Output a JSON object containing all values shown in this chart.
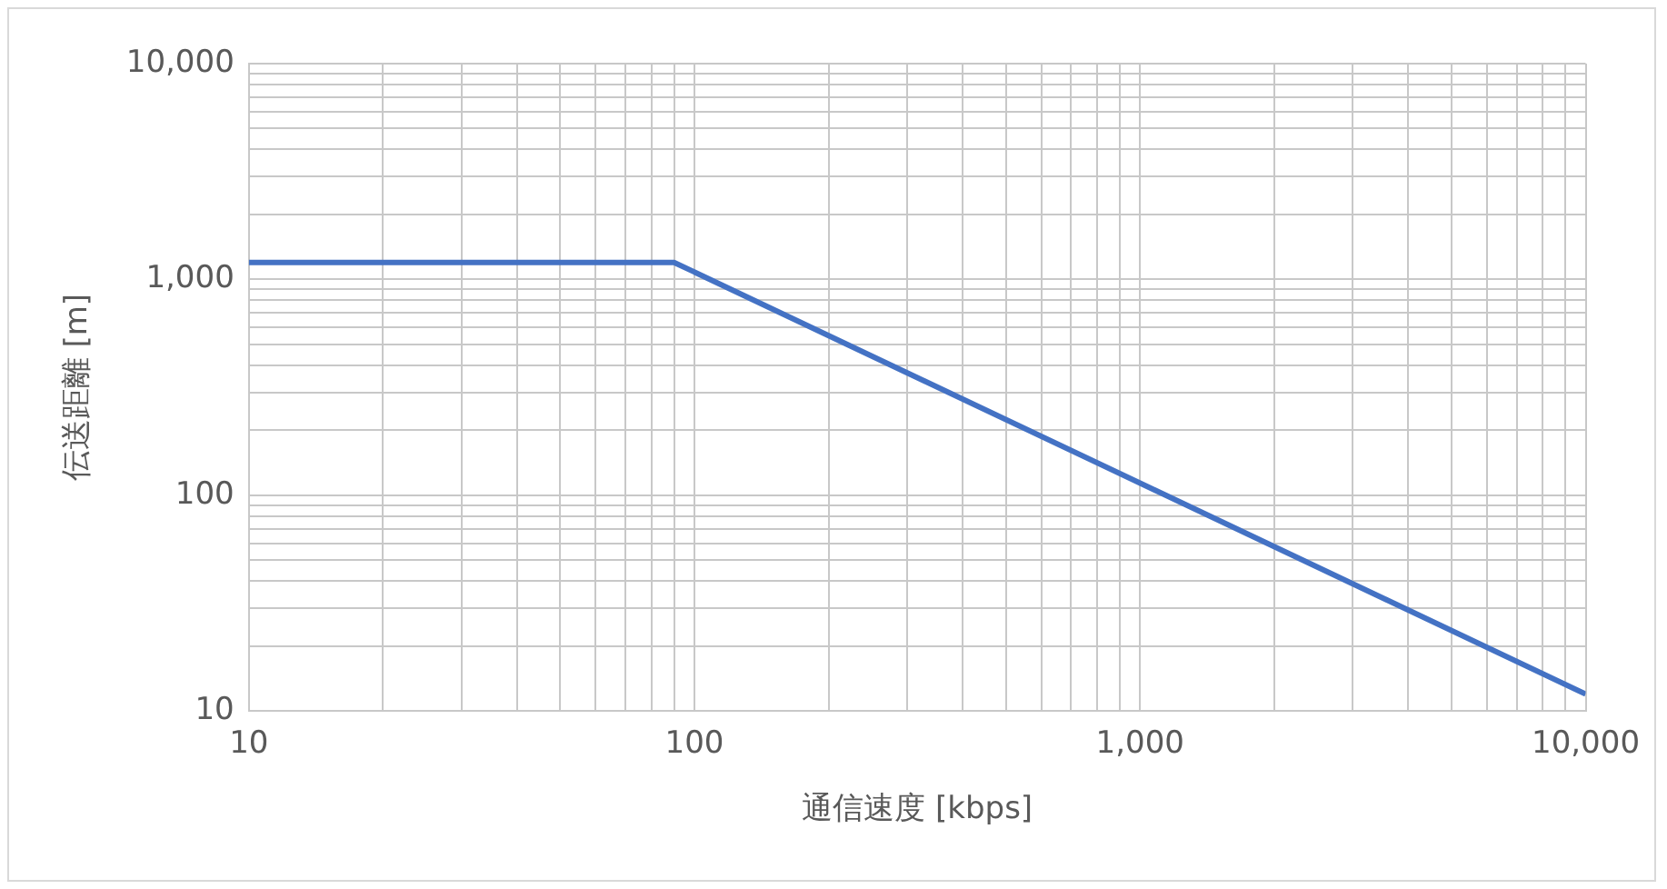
{
  "chart_data": {
    "type": "line",
    "xlabel": "通信速度 [kbps]",
    "ylabel": "伝送距離 [m]",
    "log": "xy",
    "grid": true,
    "legend": false,
    "marker": "none",
    "line_style": "solid",
    "x": [
      10,
      90,
      10000
    ],
    "series": [
      {
        "color": "#4472c4",
        "values": [
          1200,
          1200,
          12
        ]
      }
    ],
    "xlim": [
      10,
      10000
    ],
    "xticks": [
      {
        "value": 10,
        "label": "10"
      },
      {
        "value": 20,
        "label": null
      },
      {
        "value": 30,
        "label": null
      },
      {
        "value": 40,
        "label": null
      },
      {
        "value": 50,
        "label": null
      },
      {
        "value": 60,
        "label": null
      },
      {
        "value": 70,
        "label": null
      },
      {
        "value": 80,
        "label": null
      },
      {
        "value": 90,
        "label": null
      },
      {
        "value": 100,
        "label": "100"
      },
      {
        "value": 200,
        "label": null
      },
      {
        "value": 300,
        "label": null
      },
      {
        "value": 400,
        "label": null
      },
      {
        "value": 500,
        "label": null
      },
      {
        "value": 600,
        "label": null
      },
      {
        "value": 700,
        "label": null
      },
      {
        "value": 800,
        "label": null
      },
      {
        "value": 900,
        "label": null
      },
      {
        "value": 1000,
        "label": "1,000"
      },
      {
        "value": 2000,
        "label": null
      },
      {
        "value": 3000,
        "label": null
      },
      {
        "value": 4000,
        "label": null
      },
      {
        "value": 5000,
        "label": null
      },
      {
        "value": 6000,
        "label": null
      },
      {
        "value": 7000,
        "label": null
      },
      {
        "value": 8000,
        "label": null
      },
      {
        "value": 9000,
        "label": null
      },
      {
        "value": 10000,
        "label": "10,000"
      }
    ],
    "ylim": [
      10,
      10000
    ],
    "yticks": [
      {
        "value": 10,
        "label": "10"
      },
      {
        "value": 20,
        "label": null
      },
      {
        "value": 30,
        "label": null
      },
      {
        "value": 40,
        "label": null
      },
      {
        "value": 50,
        "label": null
      },
      {
        "value": 60,
        "label": null
      },
      {
        "value": 70,
        "label": null
      },
      {
        "value": 80,
        "label": null
      },
      {
        "value": 90,
        "label": null
      },
      {
        "value": 100,
        "label": "100"
      },
      {
        "value": 200,
        "label": null
      },
      {
        "value": 300,
        "label": null
      },
      {
        "value": 400,
        "label": null
      },
      {
        "value": 500,
        "label": null
      },
      {
        "value": 600,
        "label": null
      },
      {
        "value": 700,
        "label": null
      },
      {
        "value": 800,
        "label": null
      },
      {
        "value": 900,
        "label": null
      },
      {
        "value": 1000,
        "label": "1,000"
      },
      {
        "value": 2000,
        "label": null
      },
      {
        "value": 3000,
        "label": null
      },
      {
        "value": 4000,
        "label": null
      },
      {
        "value": 5000,
        "label": null
      },
      {
        "value": 6000,
        "label": null
      },
      {
        "value": 7000,
        "label": null
      },
      {
        "value": 8000,
        "label": null
      },
      {
        "value": 9000,
        "label": null
      },
      {
        "value": 10000,
        "label": "10,000"
      }
    ]
  }
}
